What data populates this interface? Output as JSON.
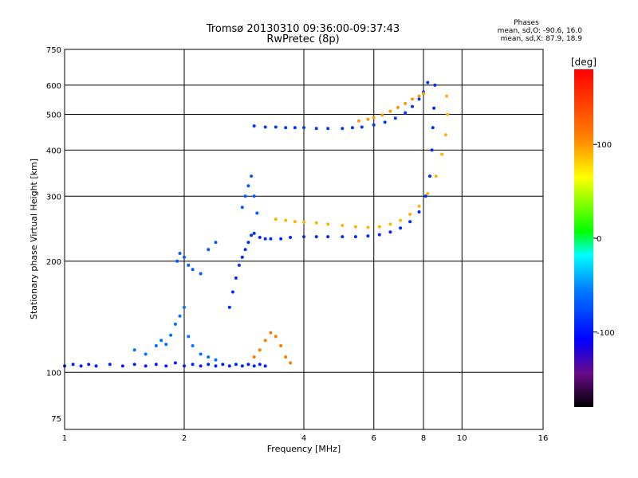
{
  "header": {
    "title_line1": "Tromsø 20130310 09:36:00-09:37:43",
    "title_line2": "RwPretec (8p)"
  },
  "stats": {
    "heading": "Phases",
    "line_o": "mean, sd,O: -90.6, 16.0",
    "line_x": "mean, sd,X:  87.9, 18.9"
  },
  "chart_data": {
    "type": "scatter",
    "x_scale": "log2",
    "y_scale": "log",
    "xlabel": "Frequency [MHz]",
    "ylabel": "Stationary phase Virtual Height [km]",
    "xlim": [
      1,
      16
    ],
    "ylim": [
      70,
      750
    ],
    "x_ticks": [
      1,
      2,
      4,
      6,
      8,
      10,
      16
    ],
    "y_ticks": [
      75,
      100,
      200,
      300,
      400,
      500,
      600,
      750
    ],
    "grid": true,
    "colorbar": {
      "label": "[deg]",
      "range": [
        -180,
        180
      ],
      "ticks": [
        -100,
        0,
        100
      ]
    },
    "series": [
      {
        "phase": -95,
        "points": [
          [
            1.0,
            104
          ],
          [
            1.05,
            105
          ],
          [
            1.1,
            104
          ],
          [
            1.15,
            105
          ],
          [
            1.2,
            104
          ],
          [
            1.3,
            105
          ],
          [
            1.4,
            104
          ],
          [
            1.5,
            105
          ],
          [
            1.6,
            104
          ],
          [
            1.7,
            105
          ],
          [
            1.8,
            104
          ],
          [
            1.9,
            106
          ],
          [
            2.0,
            104
          ],
          [
            2.1,
            105
          ],
          [
            2.2,
            104
          ],
          [
            2.3,
            105
          ],
          [
            2.4,
            104
          ],
          [
            2.5,
            105
          ],
          [
            2.6,
            104
          ],
          [
            2.7,
            105
          ],
          [
            2.8,
            104
          ],
          [
            2.9,
            105
          ],
          [
            3.0,
            104
          ],
          [
            3.1,
            105
          ],
          [
            3.2,
            104
          ]
        ]
      },
      {
        "phase": -90,
        "points": [
          [
            2.6,
            150
          ],
          [
            2.65,
            165
          ],
          [
            2.7,
            180
          ],
          [
            2.75,
            195
          ],
          [
            2.8,
            205
          ],
          [
            2.85,
            215
          ],
          [
            2.9,
            225
          ],
          [
            2.95,
            235
          ],
          [
            3.0,
            238
          ],
          [
            3.1,
            232
          ],
          [
            3.2,
            230
          ],
          [
            3.3,
            230
          ],
          [
            3.5,
            230
          ],
          [
            3.7,
            232
          ],
          [
            4.0,
            233
          ],
          [
            4.3,
            233
          ],
          [
            4.6,
            233
          ],
          [
            5.0,
            233
          ],
          [
            5.4,
            233
          ],
          [
            5.8,
            234
          ],
          [
            6.2,
            236
          ],
          [
            6.6,
            240
          ],
          [
            7.0,
            246
          ],
          [
            7.4,
            256
          ],
          [
            7.8,
            272
          ],
          [
            8.1,
            300
          ],
          [
            8.3,
            340
          ],
          [
            8.4,
            400
          ],
          [
            8.45,
            460
          ],
          [
            8.5,
            520
          ],
          [
            8.55,
            600
          ]
        ]
      },
      {
        "phase": -85,
        "points": [
          [
            3.0,
            465
          ],
          [
            3.2,
            462
          ],
          [
            3.4,
            462
          ],
          [
            3.6,
            460
          ],
          [
            3.8,
            460
          ],
          [
            4.0,
            460
          ],
          [
            4.3,
            458
          ],
          [
            4.6,
            458
          ],
          [
            5.0,
            458
          ],
          [
            5.3,
            460
          ],
          [
            5.6,
            462
          ],
          [
            6.0,
            468
          ],
          [
            6.4,
            476
          ],
          [
            6.8,
            488
          ],
          [
            7.2,
            505
          ],
          [
            7.5,
            525
          ],
          [
            7.8,
            550
          ],
          [
            8.0,
            575
          ],
          [
            8.2,
            610
          ]
        ]
      },
      {
        "phase": -70,
        "points": [
          [
            1.92,
            200
          ],
          [
            1.95,
            210
          ],
          [
            2.0,
            205
          ],
          [
            2.05,
            195
          ],
          [
            2.1,
            190
          ],
          [
            2.2,
            185
          ],
          [
            2.3,
            215
          ],
          [
            2.4,
            225
          ],
          [
            2.8,
            280
          ],
          [
            2.85,
            300
          ],
          [
            2.9,
            320
          ],
          [
            2.95,
            340
          ],
          [
            3.0,
            300
          ],
          [
            3.05,
            270
          ]
        ]
      },
      {
        "phase": -60,
        "points": [
          [
            1.5,
            115
          ],
          [
            1.6,
            112
          ],
          [
            1.7,
            118
          ],
          [
            1.75,
            122
          ],
          [
            1.8,
            119
          ],
          [
            1.85,
            126
          ],
          [
            1.9,
            135
          ],
          [
            1.95,
            142
          ],
          [
            2.0,
            150
          ],
          [
            2.05,
            125
          ],
          [
            2.1,
            118
          ],
          [
            2.2,
            112
          ],
          [
            2.3,
            110
          ],
          [
            2.4,
            108
          ]
        ]
      },
      {
        "phase": 90,
        "points": [
          [
            3.4,
            260
          ],
          [
            3.6,
            258
          ],
          [
            3.8,
            256
          ],
          [
            4.0,
            255
          ],
          [
            4.3,
            254
          ],
          [
            4.6,
            252
          ],
          [
            5.0,
            250
          ],
          [
            5.4,
            248
          ],
          [
            5.8,
            247
          ],
          [
            6.2,
            248
          ],
          [
            6.6,
            252
          ],
          [
            7.0,
            258
          ],
          [
            7.4,
            268
          ],
          [
            7.8,
            282
          ],
          [
            8.2,
            305
          ],
          [
            8.6,
            340
          ],
          [
            8.9,
            390
          ],
          [
            9.1,
            440
          ],
          [
            9.2,
            500
          ],
          [
            9.15,
            560
          ]
        ]
      },
      {
        "phase": 100,
        "points": [
          [
            5.5,
            480
          ],
          [
            5.8,
            485
          ],
          [
            6.0,
            490
          ],
          [
            6.3,
            498
          ],
          [
            6.6,
            510
          ],
          [
            6.9,
            522
          ],
          [
            7.2,
            535
          ],
          [
            7.5,
            550
          ],
          [
            7.8,
            560
          ],
          [
            8.0,
            570
          ]
        ]
      },
      {
        "phase": 110,
        "points": [
          [
            3.0,
            110
          ],
          [
            3.1,
            115
          ],
          [
            3.2,
            122
          ],
          [
            3.3,
            128
          ],
          [
            3.4,
            125
          ],
          [
            3.5,
            118
          ],
          [
            3.6,
            110
          ],
          [
            3.7,
            106
          ]
        ]
      }
    ]
  }
}
